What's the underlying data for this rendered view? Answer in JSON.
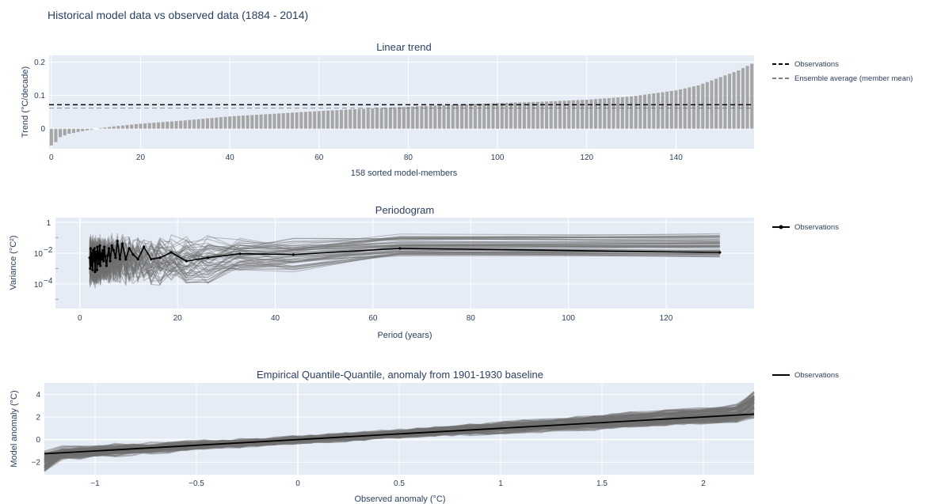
{
  "page": {
    "title": "Historical model data vs observed data (1884 - 2014)"
  },
  "colors": {
    "plot_bg": "#e5ecf6",
    "grid": "#ffffff",
    "bar": "#a6a6a6",
    "model_line": "#6f6f6f",
    "obs_line": "#000000",
    "text": "#2a3f5f"
  },
  "chart_data": [
    {
      "type": "bar",
      "title": "Linear trend",
      "xlabel": "158 sorted model-members",
      "ylabel": "Trend (°C/decade)",
      "xlim": [
        -0.5,
        157.5
      ],
      "ylim": [
        -0.06,
        0.22
      ],
      "xticks": [
        0,
        20,
        40,
        60,
        80,
        100,
        120,
        140
      ],
      "xtick_labels": [
        "0",
        "20",
        "40",
        "60",
        "80",
        "100",
        "120",
        "140"
      ],
      "yticks": [
        0,
        0.1,
        0.2
      ],
      "ytick_labels": [
        "0",
        "0.1",
        "0.2"
      ],
      "n_members": 158,
      "value_anchors": [
        [
          0,
          -0.05
        ],
        [
          1,
          -0.04
        ],
        [
          2,
          -0.025
        ],
        [
          4,
          -0.015
        ],
        [
          7,
          -0.007
        ],
        [
          10,
          0.0
        ],
        [
          14,
          0.007
        ],
        [
          20,
          0.015
        ],
        [
          30,
          0.025
        ],
        [
          40,
          0.037
        ],
        [
          50,
          0.045
        ],
        [
          60,
          0.053
        ],
        [
          70,
          0.06
        ],
        [
          80,
          0.066
        ],
        [
          90,
          0.072
        ],
        [
          100,
          0.077
        ],
        [
          110,
          0.081
        ],
        [
          120,
          0.087
        ],
        [
          130,
          0.097
        ],
        [
          140,
          0.115
        ],
        [
          145,
          0.13
        ],
        [
          150,
          0.155
        ],
        [
          154,
          0.175
        ],
        [
          157,
          0.195
        ]
      ],
      "reference_lines": [
        {
          "name": "Observations",
          "value": 0.072,
          "style": "dash"
        },
        {
          "name": "Ensemble average (member mean)",
          "value": 0.062,
          "style": "dash-light"
        }
      ],
      "legend": [
        "Observations",
        "Ensemble average (member mean)"
      ],
      "legend_position": "right"
    },
    {
      "type": "line",
      "title": "Periodogram",
      "xlabel": "Period (years)",
      "ylabel": "Variance (°C²)",
      "yscale": "log",
      "xlim": [
        -5,
        138
      ],
      "ylim_log10": [
        -5.6,
        0.3
      ],
      "xticks": [
        0,
        20,
        40,
        60,
        80,
        100,
        120
      ],
      "xtick_labels": [
        "0",
        "20",
        "40",
        "60",
        "80",
        "100",
        "120"
      ],
      "yticks_log10": [
        0,
        -2,
        -4
      ],
      "ytick_labels": [
        "1",
        "10",
        "10"
      ],
      "ytick_exponents": [
        "",
        "−2",
        "−4"
      ],
      "periods": [
        131,
        65.5,
        43.7,
        32.75,
        26.2,
        21.8,
        18.7,
        16.4,
        14.6,
        13.1,
        11.9,
        10.9,
        10.1,
        9.4,
        8.7,
        8.2,
        7.7,
        7.3,
        6.9,
        6.55,
        6.2,
        5.95,
        5.7,
        5.45,
        5.2,
        5.0,
        4.85,
        4.7,
        4.5,
        4.35,
        4.2,
        4.1,
        3.95,
        3.85,
        3.75,
        3.6,
        3.5,
        3.4,
        3.3,
        3.2,
        3.1,
        3.0,
        2.9,
        2.8,
        2.7,
        2.6,
        2.5,
        2.4,
        2.3,
        2.2,
        2.1,
        2.0
      ],
      "observations": [
        0.011,
        0.02,
        0.008,
        0.009,
        0.005,
        0.003,
        0.011,
        0.005,
        0.004,
        0.025,
        0.004,
        0.008,
        0.02,
        0.004,
        0.04,
        0.004,
        0.06,
        0.005,
        0.015,
        0.03,
        0.003,
        0.02,
        0.007,
        0.0015,
        0.006,
        0.025,
        0.003,
        0.015,
        0.004,
        0.01,
        0.0015,
        0.03,
        0.006,
        0.002,
        0.011,
        0.025,
        0.0008,
        0.008,
        0.004,
        0.012,
        0.0006,
        0.02,
        0.005,
        0.003,
        0.015,
        0.0008,
        0.01,
        0.004,
        0.0015,
        0.02,
        0.001,
        0.005
      ],
      "model_ensemble": {
        "n_members": 60,
        "spread_log10": [
          -4,
          -0.2
        ]
      },
      "legend": [
        "Observations"
      ],
      "legend_position": "right"
    },
    {
      "type": "line",
      "title": "Empirical Quantile-Quantile, anomaly from 1901-1930 baseline",
      "xlabel": "Observed anomaly (°C)",
      "ylabel": "Model anomaly (°C)",
      "xlim": [
        -1.25,
        2.25
      ],
      "ylim": [
        -3.1,
        5.0
      ],
      "xticks": [
        -1,
        -0.5,
        0,
        0.5,
        1,
        1.5,
        2
      ],
      "xtick_labels": [
        "−1",
        "−0.5",
        "0",
        "0.5",
        "1",
        "1.5",
        "2"
      ],
      "yticks": [
        -2,
        0,
        2,
        4
      ],
      "ytick_labels": [
        "−2",
        "0",
        "2",
        "4"
      ],
      "observations": {
        "x": [
          -1.25,
          -0.5,
          0,
          0.5,
          1,
          1.5,
          2,
          2.25
        ],
        "y": [
          -1.25,
          -0.5,
          0,
          0.5,
          1,
          1.5,
          2,
          2.25
        ]
      },
      "model_ensemble": {
        "n_members": 60,
        "slope_range": [
          0.75,
          1.35
        ],
        "offset_range": [
          -0.5,
          0.4
        ]
      },
      "legend": [
        "Observations"
      ],
      "legend_position": "right"
    }
  ]
}
